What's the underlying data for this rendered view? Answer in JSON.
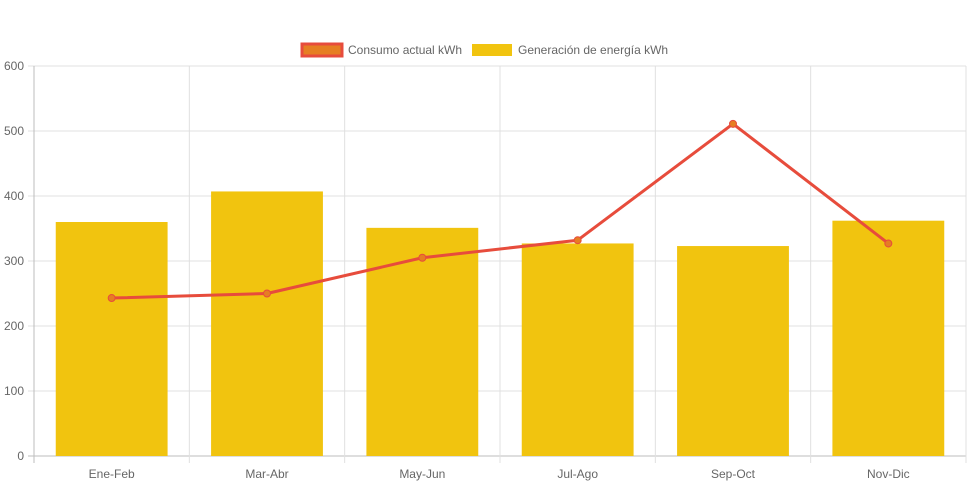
{
  "chart_data": {
    "type": "bar",
    "categories": [
      "Ene-Feb",
      "Mar-Abr",
      "May-Jun",
      "Jul-Ago",
      "Sep-Oct",
      "Nov-Dic"
    ],
    "series": [
      {
        "name": "Consumo actual kWh",
        "type": "line",
        "values": [
          243,
          250,
          305,
          332,
          511,
          327
        ],
        "color": "#e74c3c",
        "point_fill": "#e67e22"
      },
      {
        "name": "Generación de energía kWh",
        "type": "bar",
        "values": [
          360,
          407,
          351,
          327,
          323,
          362
        ],
        "color": "#f1c40f"
      }
    ],
    "ylim": [
      0,
      600
    ],
    "yticks": [
      0,
      100,
      200,
      300,
      400,
      500,
      600
    ],
    "grid": true,
    "legend": "top-center",
    "title": "",
    "xlabel": "",
    "ylabel": ""
  }
}
